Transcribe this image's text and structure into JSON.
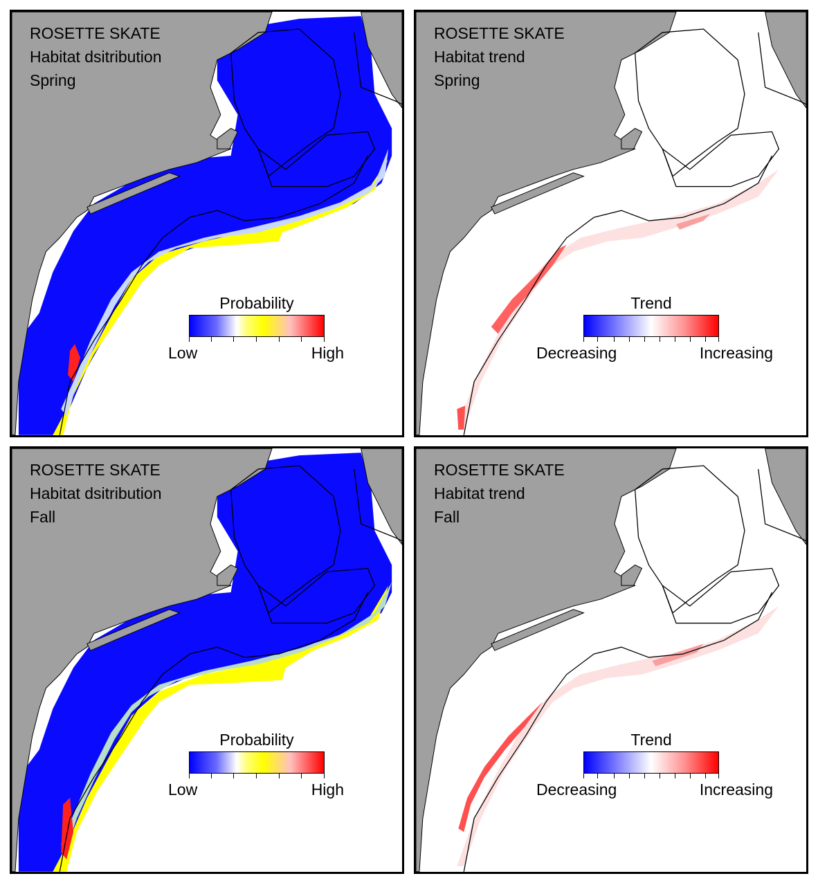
{
  "panels": [
    {
      "id": "spring-distribution",
      "kind": "distribution",
      "title_lines": [
        "ROSETTE SKATE",
        "Habitat dsitribution",
        "Spring"
      ],
      "legend": {
        "title": "Probability",
        "low_label": "Low",
        "high_label": "High"
      }
    },
    {
      "id": "spring-trend",
      "kind": "trend",
      "title_lines": [
        "ROSETTE SKATE",
        "Habitat trend",
        "Spring"
      ],
      "legend": {
        "title": "Trend",
        "low_label": "Decreasing",
        "high_label": "Increasing"
      }
    },
    {
      "id": "fall-distribution",
      "kind": "distribution",
      "title_lines": [
        "ROSETTE SKATE",
        "Habitat dsitribution",
        "Fall"
      ],
      "legend": {
        "title": "Probability",
        "low_label": "Low",
        "high_label": "High"
      }
    },
    {
      "id": "fall-trend",
      "kind": "trend",
      "title_lines": [
        "ROSETTE SKATE",
        "Habitat trend",
        "Fall"
      ],
      "legend": {
        "title": "Trend",
        "low_label": "Decreasing",
        "high_label": "Increasing"
      }
    }
  ],
  "colors": {
    "land": "#a0a0a0",
    "water": "#ffffff",
    "contour": "#000000",
    "probability_scale": [
      "#0000ff",
      "#ffffff",
      "#ffff00",
      "#ff0000"
    ],
    "trend_scale": [
      "#0000ff",
      "#ffffff",
      "#ff0000"
    ]
  }
}
